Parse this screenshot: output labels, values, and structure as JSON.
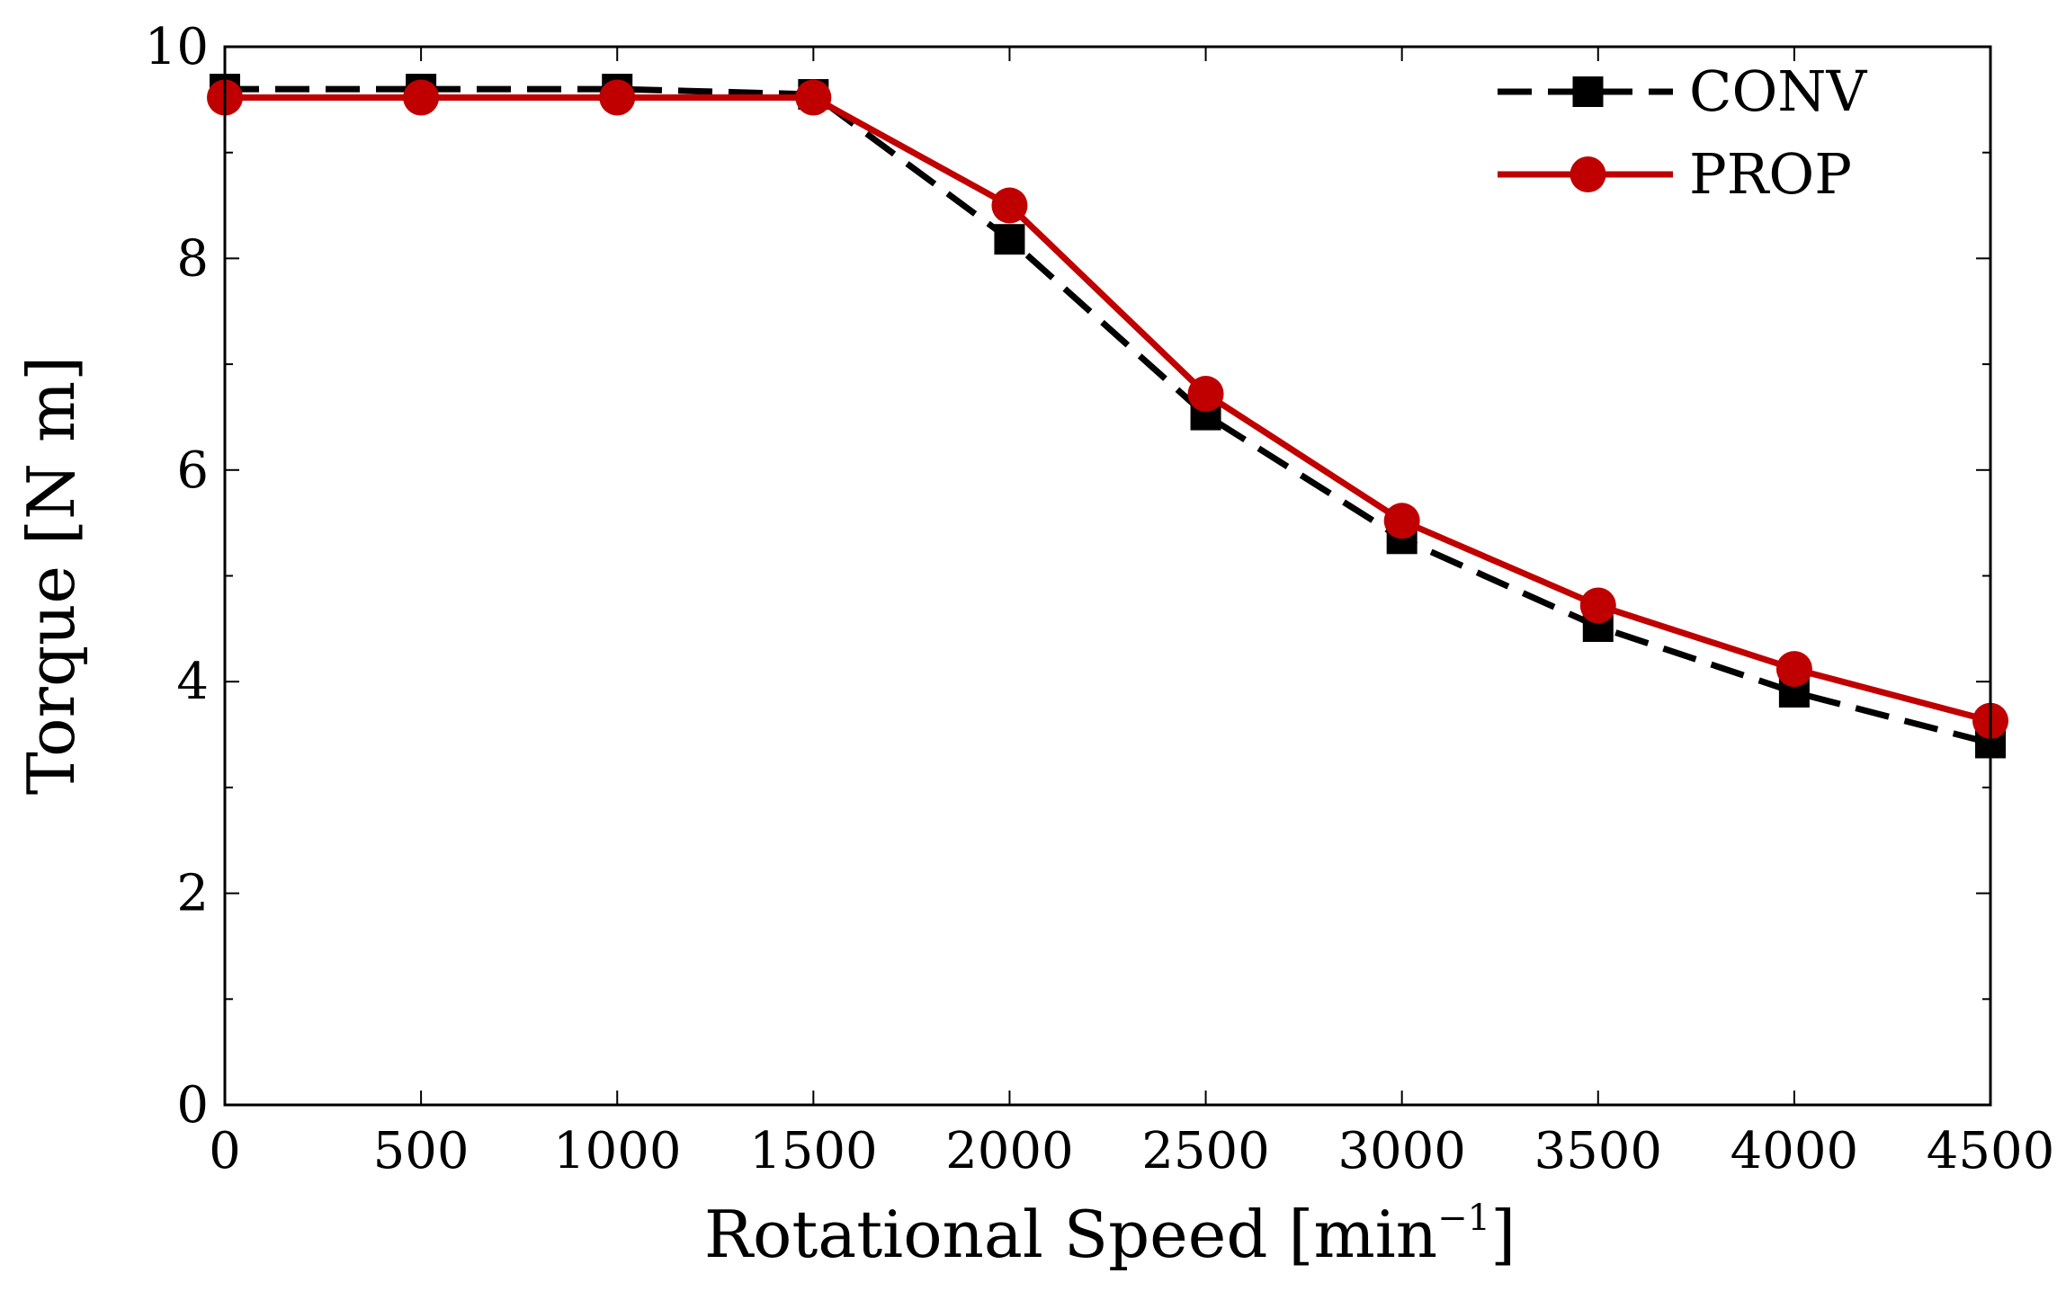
{
  "chart_data": {
    "type": "line",
    "title": "",
    "xlabel": "Rotational Speed [min",
    "xlabel_sup": "−1",
    "xlabel_close": "]",
    "ylabel": "Torque [N m]",
    "xlim": [
      0,
      4500
    ],
    "ylim": [
      0,
      10
    ],
    "x": [
      0,
      500,
      1000,
      1500,
      2000,
      2500,
      3000,
      3500,
      4000,
      4500
    ],
    "xticks": [
      0,
      500,
      1000,
      1500,
      2000,
      2500,
      3000,
      3500,
      4000,
      4500
    ],
    "xtick_labels": [
      "0",
      "500",
      "1000",
      "1500",
      "2000",
      "2500",
      "3000",
      "3500",
      "4000",
      "4500"
    ],
    "yticks": [
      0,
      2,
      4,
      6,
      8,
      10
    ],
    "ytick_labels": [
      "0",
      "2",
      "4",
      "6",
      "8",
      "10"
    ],
    "yminor": [
      1,
      3,
      5,
      7,
      9
    ],
    "grid": false,
    "legend_position": "top-right",
    "series": [
      {
        "name": "CONV",
        "color": "#000000",
        "dash": "dashed",
        "marker": "square",
        "values": [
          9.6,
          9.6,
          9.6,
          9.55,
          8.18,
          6.52,
          5.35,
          4.52,
          3.9,
          3.42
        ]
      },
      {
        "name": "PROP",
        "color": "#c00000",
        "dash": "solid",
        "marker": "circle",
        "values": [
          9.52,
          9.52,
          9.52,
          9.52,
          8.5,
          6.72,
          5.52,
          4.72,
          4.12,
          3.63
        ]
      }
    ]
  }
}
